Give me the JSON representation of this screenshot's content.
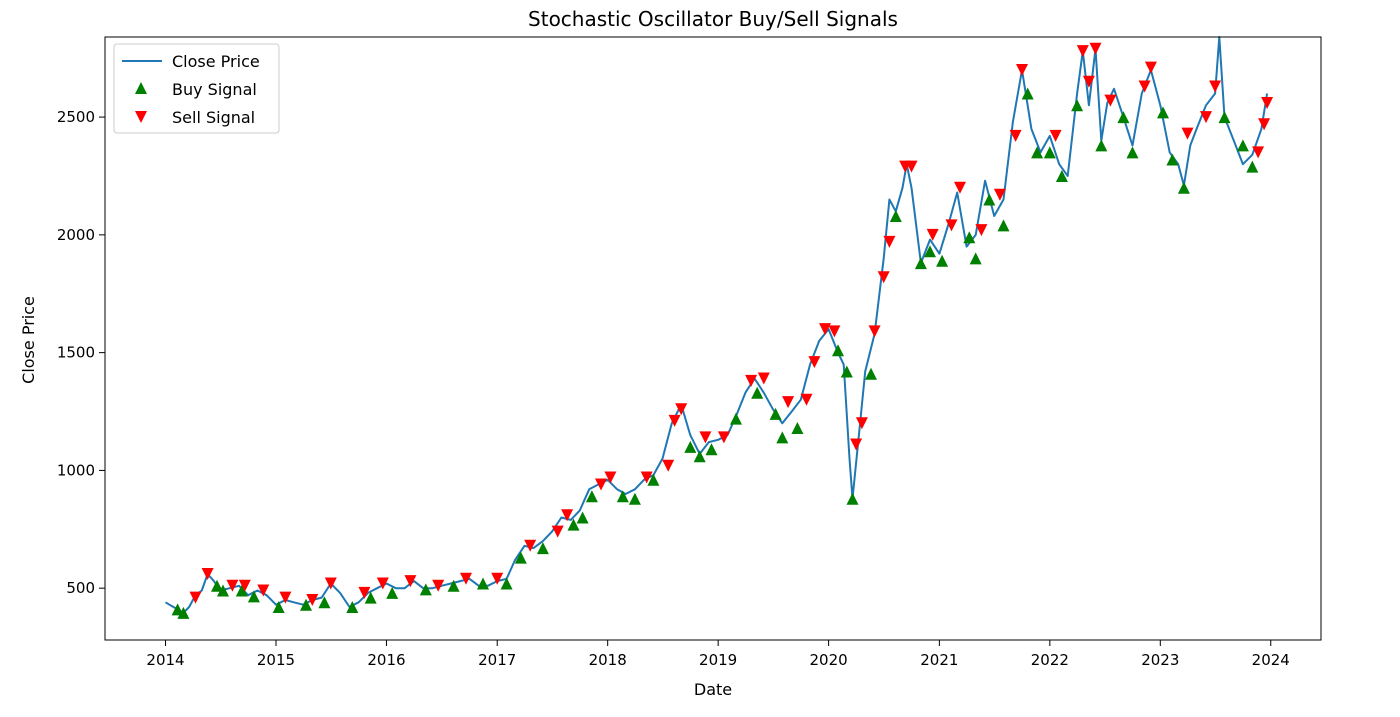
{
  "chart_data": {
    "type": "line",
    "title": "Stochastic Oscillator Buy/Sell Signals",
    "xlabel": "Date",
    "ylabel": "Close Price",
    "xlim": [
      "2013-06-15",
      "2024-06-15"
    ],
    "ylim": [
      280,
      2840
    ],
    "x_ticks": [
      "2014",
      "2015",
      "2016",
      "2017",
      "2018",
      "2019",
      "2020",
      "2021",
      "2022",
      "2023",
      "2024"
    ],
    "y_ticks": [
      500,
      1000,
      1500,
      2000,
      2500
    ],
    "grid": false,
    "legend_position": "upper-left",
    "legend": [
      "Close Price",
      "Buy Signal",
      "Sell Signal"
    ],
    "colors": {
      "line": "#1f77b4",
      "buy": "#008000",
      "sell": "#ff0000"
    },
    "series": [
      {
        "name": "Close Price",
        "type": "line",
        "points": [
          [
            "2014-01-01",
            440
          ],
          [
            "2014-01-20",
            425
          ],
          [
            "2014-02-10",
            410
          ],
          [
            "2014-03-01",
            395
          ],
          [
            "2014-03-20",
            420
          ],
          [
            "2014-04-10",
            470
          ],
          [
            "2014-05-01",
            490
          ],
          [
            "2014-05-20",
            560
          ],
          [
            "2014-06-10",
            530
          ],
          [
            "2014-07-01",
            490
          ],
          [
            "2014-08-01",
            500
          ],
          [
            "2014-09-01",
            510
          ],
          [
            "2014-10-01",
            470
          ],
          [
            "2014-11-01",
            490
          ],
          [
            "2014-12-01",
            470
          ],
          [
            "2015-01-01",
            430
          ],
          [
            "2015-02-01",
            450
          ],
          [
            "2015-03-01",
            440
          ],
          [
            "2015-04-01",
            430
          ],
          [
            "2015-05-01",
            450
          ],
          [
            "2015-06-01",
            460
          ],
          [
            "2015-07-01",
            520
          ],
          [
            "2015-08-01",
            480
          ],
          [
            "2015-09-01",
            420
          ],
          [
            "2015-10-01",
            440
          ],
          [
            "2015-11-01",
            480
          ],
          [
            "2015-12-01",
            500
          ],
          [
            "2016-01-01",
            520
          ],
          [
            "2016-02-01",
            500
          ],
          [
            "2016-03-01",
            500
          ],
          [
            "2016-04-01",
            530
          ],
          [
            "2016-05-01",
            500
          ],
          [
            "2016-06-01",
            500
          ],
          [
            "2016-07-01",
            510
          ],
          [
            "2016-08-01",
            520
          ],
          [
            "2016-09-01",
            530
          ],
          [
            "2016-10-01",
            540
          ],
          [
            "2016-11-01",
            510
          ],
          [
            "2016-12-01",
            510
          ],
          [
            "2017-01-01",
            530
          ],
          [
            "2017-02-01",
            540
          ],
          [
            "2017-03-01",
            620
          ],
          [
            "2017-04-01",
            680
          ],
          [
            "2017-05-01",
            670
          ],
          [
            "2017-06-01",
            700
          ],
          [
            "2017-07-01",
            740
          ],
          [
            "2017-08-01",
            800
          ],
          [
            "2017-09-01",
            790
          ],
          [
            "2017-10-01",
            830
          ],
          [
            "2017-11-01",
            920
          ],
          [
            "2017-12-01",
            940
          ],
          [
            "2018-01-01",
            960
          ],
          [
            "2018-02-01",
            920
          ],
          [
            "2018-03-01",
            900
          ],
          [
            "2018-04-01",
            920
          ],
          [
            "2018-05-01",
            960
          ],
          [
            "2018-06-01",
            980
          ],
          [
            "2018-07-01",
            1050
          ],
          [
            "2018-08-01",
            1200
          ],
          [
            "2018-09-01",
            1280
          ],
          [
            "2018-10-01",
            1150
          ],
          [
            "2018-11-01",
            1070
          ],
          [
            "2018-12-01",
            1120
          ],
          [
            "2019-01-01",
            1130
          ],
          [
            "2019-02-01",
            1150
          ],
          [
            "2019-03-01",
            1230
          ],
          [
            "2019-04-01",
            1330
          ],
          [
            "2019-05-01",
            1390
          ],
          [
            "2019-06-01",
            1330
          ],
          [
            "2019-07-01",
            1260
          ],
          [
            "2019-08-01",
            1200
          ],
          [
            "2019-09-01",
            1250
          ],
          [
            "2019-10-01",
            1300
          ],
          [
            "2019-11-01",
            1450
          ],
          [
            "2019-12-01",
            1550
          ],
          [
            "2020-01-01",
            1600
          ],
          [
            "2020-02-01",
            1500
          ],
          [
            "2020-02-20",
            1450
          ],
          [
            "2020-03-10",
            1050
          ],
          [
            "2020-03-20",
            880
          ],
          [
            "2020-04-10",
            1150
          ],
          [
            "2020-05-01",
            1420
          ],
          [
            "2020-06-01",
            1580
          ],
          [
            "2020-07-01",
            1900
          ],
          [
            "2020-07-20",
            2150
          ],
          [
            "2020-08-10",
            2100
          ],
          [
            "2020-09-01",
            2200
          ],
          [
            "2020-09-15",
            2300
          ],
          [
            "2020-10-01",
            2200
          ],
          [
            "2020-11-01",
            1880
          ],
          [
            "2020-12-01",
            1980
          ],
          [
            "2021-01-01",
            1920
          ],
          [
            "2021-02-01",
            2050
          ],
          [
            "2021-03-01",
            2180
          ],
          [
            "2021-04-01",
            1950
          ],
          [
            "2021-05-01",
            2000
          ],
          [
            "2021-06-01",
            2230
          ],
          [
            "2021-07-01",
            2080
          ],
          [
            "2021-08-01",
            2150
          ],
          [
            "2021-09-01",
            2480
          ],
          [
            "2021-10-01",
            2700
          ],
          [
            "2021-11-01",
            2450
          ],
          [
            "2021-12-01",
            2350
          ],
          [
            "2022-01-01",
            2420
          ],
          [
            "2022-02-01",
            2300
          ],
          [
            "2022-03-01",
            2250
          ],
          [
            "2022-04-01",
            2600
          ],
          [
            "2022-04-20",
            2780
          ],
          [
            "2022-05-10",
            2550
          ],
          [
            "2022-06-01",
            2790
          ],
          [
            "2022-06-20",
            2400
          ],
          [
            "2022-07-10",
            2560
          ],
          [
            "2022-08-01",
            2620
          ],
          [
            "2022-09-01",
            2500
          ],
          [
            "2022-10-01",
            2380
          ],
          [
            "2022-11-01",
            2600
          ],
          [
            "2022-12-01",
            2700
          ],
          [
            "2023-01-01",
            2550
          ],
          [
            "2023-02-01",
            2350
          ],
          [
            "2023-03-01",
            2300
          ],
          [
            "2023-03-20",
            2210
          ],
          [
            "2023-04-10",
            2380
          ],
          [
            "2023-05-01",
            2450
          ],
          [
            "2023-06-01",
            2550
          ],
          [
            "2023-07-01",
            2600
          ],
          [
            "2023-07-15",
            2840
          ],
          [
            "2023-08-01",
            2500
          ],
          [
            "2023-09-01",
            2400
          ],
          [
            "2023-10-01",
            2300
          ],
          [
            "2023-11-01",
            2340
          ],
          [
            "2023-12-01",
            2450
          ],
          [
            "2023-12-20",
            2600
          ]
        ]
      },
      {
        "name": "Buy Signal",
        "type": "scatter",
        "marker": "triangle-up",
        "points": [
          [
            "2014-02-10",
            410
          ],
          [
            "2014-03-01",
            395
          ],
          [
            "2014-06-20",
            510
          ],
          [
            "2014-07-10",
            490
          ],
          [
            "2014-09-10",
            490
          ],
          [
            "2014-10-20",
            465
          ],
          [
            "2015-01-10",
            420
          ],
          [
            "2015-04-10",
            430
          ],
          [
            "2015-06-10",
            440
          ],
          [
            "2015-09-10",
            420
          ],
          [
            "2015-11-10",
            460
          ],
          [
            "2016-01-20",
            480
          ],
          [
            "2016-05-10",
            495
          ],
          [
            "2016-08-10",
            510
          ],
          [
            "2016-11-15",
            520
          ],
          [
            "2017-02-01",
            520
          ],
          [
            "2017-03-20",
            630
          ],
          [
            "2017-06-01",
            670
          ],
          [
            "2017-09-10",
            770
          ],
          [
            "2017-10-10",
            800
          ],
          [
            "2017-11-10",
            890
          ],
          [
            "2018-02-20",
            890
          ],
          [
            "2018-04-01",
            880
          ],
          [
            "2018-06-01",
            960
          ],
          [
            "2018-10-01",
            1100
          ],
          [
            "2018-11-01",
            1060
          ],
          [
            "2018-12-10",
            1090
          ],
          [
            "2019-03-01",
            1220
          ],
          [
            "2019-05-10",
            1330
          ],
          [
            "2019-07-10",
            1240
          ],
          [
            "2019-08-01",
            1140
          ],
          [
            "2019-09-20",
            1180
          ],
          [
            "2020-02-01",
            1510
          ],
          [
            "2020-03-01",
            1420
          ],
          [
            "2020-03-20",
            880
          ],
          [
            "2020-05-20",
            1410
          ],
          [
            "2020-08-10",
            2080
          ],
          [
            "2020-11-01",
            1880
          ],
          [
            "2020-12-01",
            1930
          ],
          [
            "2021-01-10",
            1890
          ],
          [
            "2021-04-10",
            1990
          ],
          [
            "2021-05-01",
            1900
          ],
          [
            "2021-06-15",
            2150
          ],
          [
            "2021-08-01",
            2040
          ],
          [
            "2021-10-20",
            2600
          ],
          [
            "2021-11-20",
            2350
          ],
          [
            "2022-01-01",
            2350
          ],
          [
            "2022-02-10",
            2250
          ],
          [
            "2022-04-01",
            2550
          ],
          [
            "2022-06-20",
            2380
          ],
          [
            "2022-09-01",
            2500
          ],
          [
            "2022-10-01",
            2350
          ],
          [
            "2023-01-10",
            2520
          ],
          [
            "2023-02-10",
            2320
          ],
          [
            "2023-03-20",
            2200
          ],
          [
            "2023-08-01",
            2500
          ],
          [
            "2023-10-01",
            2380
          ],
          [
            "2023-11-01",
            2290
          ]
        ]
      },
      {
        "name": "Sell Signal",
        "type": "scatter",
        "marker": "triangle-down",
        "points": [
          [
            "2014-04-10",
            460
          ],
          [
            "2014-05-20",
            560
          ],
          [
            "2014-08-10",
            510
          ],
          [
            "2014-09-20",
            510
          ],
          [
            "2014-11-20",
            490
          ],
          [
            "2015-02-01",
            460
          ],
          [
            "2015-05-01",
            450
          ],
          [
            "2015-07-01",
            520
          ],
          [
            "2015-10-20",
            480
          ],
          [
            "2015-12-20",
            520
          ],
          [
            "2016-03-20",
            530
          ],
          [
            "2016-06-20",
            510
          ],
          [
            "2016-09-20",
            540
          ],
          [
            "2017-01-01",
            540
          ],
          [
            "2017-04-20",
            680
          ],
          [
            "2017-07-20",
            740
          ],
          [
            "2017-08-20",
            810
          ],
          [
            "2017-12-10",
            940
          ],
          [
            "2018-01-10",
            970
          ],
          [
            "2018-05-10",
            970
          ],
          [
            "2018-07-20",
            1020
          ],
          [
            "2018-08-10",
            1210
          ],
          [
            "2018-09-01",
            1260
          ],
          [
            "2018-11-20",
            1140
          ],
          [
            "2019-01-20",
            1140
          ],
          [
            "2019-04-20",
            1380
          ],
          [
            "2019-06-01",
            1390
          ],
          [
            "2019-08-20",
            1290
          ],
          [
            "2019-10-20",
            1300
          ],
          [
            "2019-11-15",
            1460
          ],
          [
            "2019-12-20",
            1600
          ],
          [
            "2020-01-20",
            1590
          ],
          [
            "2020-04-01",
            1110
          ],
          [
            "2020-04-20",
            1200
          ],
          [
            "2020-06-01",
            1590
          ],
          [
            "2020-07-01",
            1820
          ],
          [
            "2020-07-20",
            1970
          ],
          [
            "2020-09-10",
            2290
          ],
          [
            "2020-10-01",
            2290
          ],
          [
            "2020-12-10",
            2000
          ],
          [
            "2021-02-10",
            2040
          ],
          [
            "2021-03-10",
            2200
          ],
          [
            "2021-05-20",
            2020
          ],
          [
            "2021-07-20",
            2170
          ],
          [
            "2021-09-10",
            2420
          ],
          [
            "2021-10-01",
            2700
          ],
          [
            "2022-01-20",
            2420
          ],
          [
            "2022-04-20",
            2780
          ],
          [
            "2022-05-10",
            2650
          ],
          [
            "2022-06-01",
            2790
          ],
          [
            "2022-07-20",
            2570
          ],
          [
            "2022-11-10",
            2630
          ],
          [
            "2022-12-01",
            2710
          ],
          [
            "2023-04-01",
            2430
          ],
          [
            "2023-06-01",
            2500
          ],
          [
            "2023-07-01",
            2630
          ],
          [
            "2023-11-20",
            2350
          ],
          [
            "2023-12-10",
            2470
          ],
          [
            "2023-12-20",
            2560
          ]
        ]
      }
    ]
  }
}
